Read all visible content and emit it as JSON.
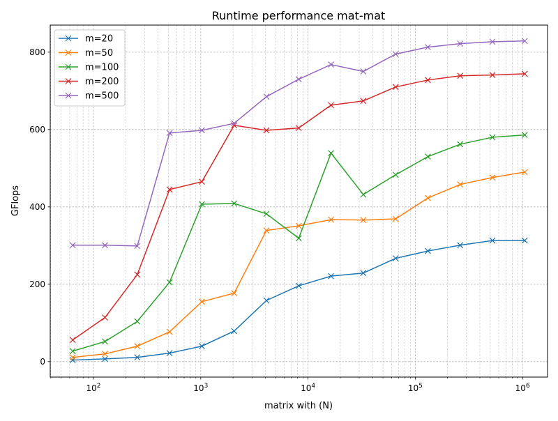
{
  "chart_data": {
    "type": "line",
    "title": "Runtime performance mat-mat",
    "xlabel": "matrix with (N)",
    "ylabel": "GFlops",
    "xscale": "log",
    "xlim": [
      39.5,
      1710000
    ],
    "ylim": [
      -40,
      870
    ],
    "x_tick_labels": [
      "10^2",
      "10^3",
      "10^4",
      "10^5",
      "10^6"
    ],
    "x_tick_values": [
      100,
      1000,
      10000,
      100000,
      1000000
    ],
    "y_ticks": [
      0,
      200,
      400,
      600,
      800
    ],
    "grid": "major and minor, dashed",
    "legend": "upper-left",
    "marker": "x",
    "x": [
      64,
      128,
      256,
      512,
      1024,
      2048,
      4096,
      8192,
      16384,
      32768,
      65536,
      131072,
      262144,
      524288,
      1048576
    ],
    "series": [
      {
        "name": "m=20",
        "color": "#1f77b4",
        "values": [
          4,
          7,
          11,
          22,
          40,
          79,
          158,
          196,
          221,
          229,
          267,
          286,
          301,
          313,
          313
        ]
      },
      {
        "name": "m=50",
        "color": "#ff7f0e",
        "values": [
          11,
          20,
          40,
          77,
          155,
          177,
          339,
          351,
          367,
          366,
          369,
          423,
          458,
          476,
          490
        ]
      },
      {
        "name": "m=100",
        "color": "#2ca02c",
        "values": [
          27,
          52,
          104,
          205,
          407,
          409,
          382,
          319,
          539,
          432,
          483,
          530,
          562,
          580,
          586
        ]
      },
      {
        "name": "m=200",
        "color": "#d62728",
        "values": [
          56,
          114,
          225,
          445,
          465,
          611,
          598,
          604,
          663,
          674,
          710,
          728,
          739,
          741,
          744
        ]
      },
      {
        "name": "m=500",
        "color": "#9467bd",
        "values": [
          301,
          301,
          299,
          591,
          598,
          616,
          685,
          730,
          768,
          750,
          795,
          813,
          822,
          827,
          829
        ]
      }
    ]
  }
}
